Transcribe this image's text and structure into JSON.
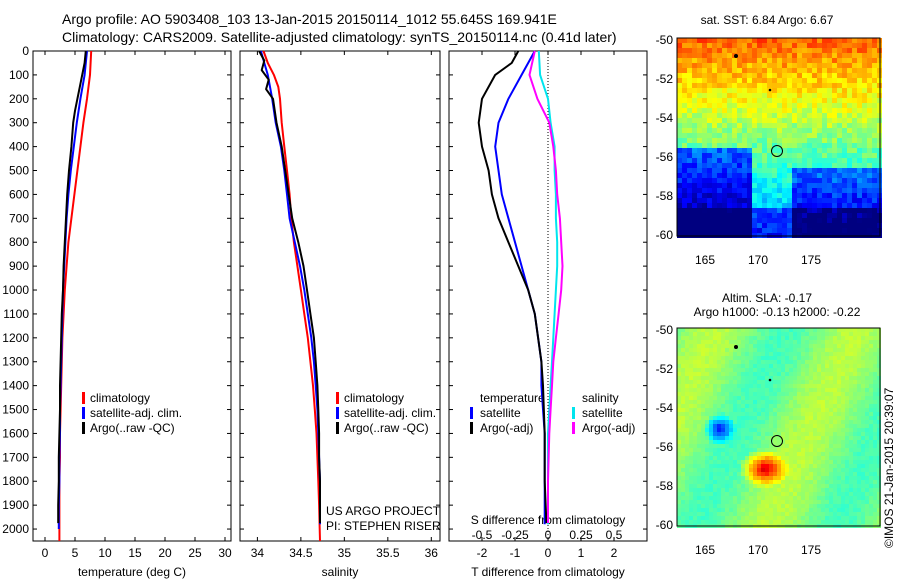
{
  "header": {
    "line1": "Argo profile: AO 5903408_103 13-Jan-2015 20150114_1012 55.645S 169.941E",
    "line2": "Climatology: CARS2009. Satellite-adjusted climatology: synTS_20150114.nc (0.41d later)"
  },
  "colors": {
    "climatology": "#ff0000",
    "satellite": "#0000ff",
    "argo": "#000000",
    "sal_satellite": "#00e5ee",
    "sal_argo": "#ff00ff"
  },
  "chart_data": [
    {
      "type": "line",
      "panel": "temperature",
      "xlabel": "temperature (deg C)",
      "xlim": [
        -2,
        31
      ],
      "xticks": [
        0,
        5,
        10,
        15,
        20,
        25,
        30
      ],
      "ylim": [
        2050,
        0
      ],
      "yticks": [
        0,
        100,
        200,
        300,
        400,
        500,
        600,
        700,
        800,
        900,
        1000,
        1100,
        1200,
        1300,
        1400,
        1500,
        1600,
        1700,
        1800,
        1900,
        2000
      ],
      "legend": [
        "climatology",
        "satellite-adj. clim.",
        "Argo(..raw -QC)"
      ],
      "series": [
        {
          "name": "climatology",
          "color": "climatology",
          "points": [
            [
              7.7,
              0
            ],
            [
              7.5,
              100
            ],
            [
              7.0,
              200
            ],
            [
              6.4,
              300
            ],
            [
              5.9,
              400
            ],
            [
              5.4,
              500
            ],
            [
              4.9,
              600
            ],
            [
              4.4,
              700
            ],
            [
              3.9,
              800
            ],
            [
              3.6,
              900
            ],
            [
              3.3,
              1000
            ],
            [
              3.1,
              1100
            ],
            [
              2.9,
              1200
            ],
            [
              2.8,
              1300
            ],
            [
              2.7,
              1400
            ],
            [
              2.6,
              1500
            ],
            [
              2.5,
              1600
            ],
            [
              2.5,
              1700
            ],
            [
              2.4,
              1800
            ],
            [
              2.4,
              1900
            ],
            [
              2.4,
              2050
            ]
          ]
        },
        {
          "name": "satellite-adj. clim.",
          "color": "satellite",
          "points": [
            [
              7.0,
              0
            ],
            [
              6.6,
              100
            ],
            [
              5.9,
              200
            ],
            [
              5.3,
              300
            ],
            [
              4.8,
              400
            ],
            [
              4.3,
              500
            ],
            [
              3.9,
              600
            ],
            [
              3.6,
              700
            ],
            [
              3.4,
              800
            ],
            [
              3.2,
              900
            ],
            [
              3.0,
              1000
            ],
            [
              2.9,
              1100
            ],
            [
              2.8,
              1200
            ],
            [
              2.7,
              1300
            ],
            [
              2.6,
              1400
            ],
            [
              2.5,
              1500
            ],
            [
              2.5,
              1600
            ],
            [
              2.4,
              1700
            ],
            [
              2.4,
              1800
            ],
            [
              2.3,
              1900
            ],
            [
              2.3,
              2000
            ]
          ]
        },
        {
          "name": "Argo(..raw -QC)",
          "color": "argo",
          "points": [
            [
              6.8,
              0
            ],
            [
              6.6,
              50
            ],
            [
              6.2,
              100
            ],
            [
              5.8,
              150
            ],
            [
              5.4,
              200
            ],
            [
              5.0,
              250
            ],
            [
              4.7,
              300
            ],
            [
              4.4,
              400
            ],
            [
              4.0,
              500
            ],
            [
              3.7,
              600
            ],
            [
              3.5,
              700
            ],
            [
              3.3,
              800
            ],
            [
              3.1,
              900
            ],
            [
              3.0,
              1000
            ],
            [
              2.8,
              1100
            ],
            [
              2.7,
              1200
            ],
            [
              2.6,
              1300
            ],
            [
              2.5,
              1400
            ],
            [
              2.5,
              1500
            ],
            [
              2.4,
              1600
            ],
            [
              2.3,
              1700
            ],
            [
              2.3,
              1800
            ],
            [
              2.2,
              1900
            ],
            [
              2.2,
              1975
            ]
          ]
        }
      ]
    },
    {
      "type": "line",
      "panel": "salinity",
      "xlabel": "salinity",
      "xlim": [
        33.8,
        36.1
      ],
      "xticks": [
        34,
        34.5,
        35,
        35.5,
        36
      ],
      "xticklabels": [
        "34",
        "34.5",
        "35",
        "35.5",
        "36"
      ],
      "legend": [
        "climatology",
        "satellite-adj. clim.",
        "Argo(..raw -QC)"
      ],
      "annotation": [
        "US ARGO PROJECT",
        "PI: STEPHEN RISER"
      ],
      "series": [
        {
          "name": "climatology",
          "color": "climatology",
          "points": [
            [
              34.07,
              0
            ],
            [
              34.12,
              50
            ],
            [
              34.19,
              100
            ],
            [
              34.24,
              150
            ],
            [
              34.26,
              200
            ],
            [
              34.28,
              300
            ],
            [
              34.31,
              400
            ],
            [
              34.34,
              500
            ],
            [
              34.37,
              600
            ],
            [
              34.39,
              700
            ],
            [
              34.42,
              800
            ],
            [
              34.46,
              900
            ],
            [
              34.5,
              1000
            ],
            [
              34.54,
              1100
            ],
            [
              34.58,
              1200
            ],
            [
              34.61,
              1300
            ],
            [
              34.64,
              1400
            ],
            [
              34.66,
              1500
            ],
            [
              34.68,
              1600
            ],
            [
              34.69,
              1700
            ],
            [
              34.7,
              1800
            ],
            [
              34.71,
              1900
            ],
            [
              34.72,
              2050
            ]
          ]
        },
        {
          "name": "satellite-adj. clim.",
          "color": "satellite",
          "points": [
            [
              34.04,
              0
            ],
            [
              34.08,
              50
            ],
            [
              34.12,
              100
            ],
            [
              34.17,
              200
            ],
            [
              34.21,
              300
            ],
            [
              34.27,
              400
            ],
            [
              34.31,
              500
            ],
            [
              34.34,
              600
            ],
            [
              34.37,
              700
            ],
            [
              34.43,
              800
            ],
            [
              34.49,
              900
            ],
            [
              34.54,
              1000
            ],
            [
              34.58,
              1100
            ],
            [
              34.62,
              1200
            ],
            [
              34.65,
              1300
            ],
            [
              34.67,
              1400
            ],
            [
              34.69,
              1500
            ],
            [
              34.7,
              1600
            ],
            [
              34.71,
              1700
            ],
            [
              34.72,
              1800
            ],
            [
              34.72,
              1900
            ],
            [
              34.72,
              1980
            ]
          ]
        },
        {
          "name": "Argo(..raw -QC)",
          "color": "argo",
          "points": [
            [
              34.02,
              0
            ],
            [
              34.08,
              40
            ],
            [
              34.05,
              80
            ],
            [
              34.13,
              120
            ],
            [
              34.1,
              160
            ],
            [
              34.18,
              200
            ],
            [
              34.22,
              300
            ],
            [
              34.28,
              400
            ],
            [
              34.32,
              500
            ],
            [
              34.36,
              600
            ],
            [
              34.4,
              700
            ],
            [
              34.47,
              800
            ],
            [
              34.53,
              900
            ],
            [
              34.57,
              1000
            ],
            [
              34.61,
              1100
            ],
            [
              34.65,
              1200
            ],
            [
              34.67,
              1300
            ],
            [
              34.69,
              1400
            ],
            [
              34.7,
              1500
            ],
            [
              34.71,
              1600
            ],
            [
              34.71,
              1700
            ],
            [
              34.72,
              1800
            ],
            [
              34.72,
              1900
            ],
            [
              34.72,
              1975
            ]
          ]
        }
      ]
    },
    {
      "type": "line",
      "panel": "difference",
      "xlabel": "T difference from climatology",
      "xlabel_top": "S difference from climatology",
      "xlim": [
        -3,
        3
      ],
      "xticks": [
        -2,
        -1,
        0,
        1,
        2
      ],
      "xticks_s": [
        -0.5,
        -0.25,
        0,
        0.25,
        0.5
      ],
      "xticklabels_s": [
        "-0.5",
        "-0.25",
        "0",
        "0.25",
        "0.5"
      ],
      "legend_temperature": [
        "temperature",
        "satellite",
        "Argo(-adj)"
      ],
      "legend_salinity": [
        "salinity",
        "satellite",
        "Argo(-adj)"
      ],
      "series": [
        {
          "name": "temperature satellite",
          "color": "satellite",
          "points": [
            [
              -0.4,
              0
            ],
            [
              -0.8,
              100
            ],
            [
              -1.2,
              200
            ],
            [
              -1.5,
              300
            ],
            [
              -1.6,
              400
            ],
            [
              -1.5,
              500
            ],
            [
              -1.4,
              600
            ],
            [
              -1.2,
              700
            ],
            [
              -1.0,
              800
            ],
            [
              -0.8,
              900
            ],
            [
              -0.6,
              1000
            ],
            [
              -0.4,
              1100
            ],
            [
              -0.3,
              1200
            ],
            [
              -0.2,
              1300
            ],
            [
              -0.2,
              1400
            ],
            [
              -0.15,
              1500
            ],
            [
              -0.1,
              1600
            ],
            [
              -0.1,
              1800
            ],
            [
              -0.1,
              1980
            ]
          ]
        },
        {
          "name": "temperature Argo(-adj)",
          "color": "argo",
          "points": [
            [
              -0.9,
              0
            ],
            [
              -1.1,
              50
            ],
            [
              -1.6,
              100
            ],
            [
              -2.0,
              200
            ],
            [
              -2.1,
              300
            ],
            [
              -2.0,
              400
            ],
            [
              -1.8,
              500
            ],
            [
              -1.7,
              600
            ],
            [
              -1.5,
              700
            ],
            [
              -1.2,
              800
            ],
            [
              -0.9,
              900
            ],
            [
              -0.6,
              1000
            ],
            [
              -0.4,
              1100
            ],
            [
              -0.3,
              1200
            ],
            [
              -0.2,
              1300
            ],
            [
              -0.15,
              1400
            ],
            [
              -0.1,
              1600
            ],
            [
              -0.1,
              1800
            ],
            [
              -0.05,
              1975
            ]
          ]
        },
        {
          "name": "salinity satellite",
          "color": "sal_satellite",
          "points": [
            [
              -0.07,
              0
            ],
            [
              -0.06,
              100
            ],
            [
              0.0,
              200
            ],
            [
              0.02,
              300
            ],
            [
              0.05,
              400
            ],
            [
              0.05,
              500
            ],
            [
              0.06,
              600
            ],
            [
              0.06,
              700
            ],
            [
              0.07,
              800
            ],
            [
              0.07,
              900
            ],
            [
              0.06,
              1000
            ],
            [
              0.05,
              1100
            ],
            [
              0.04,
              1200
            ],
            [
              0.03,
              1300
            ],
            [
              0.02,
              1400
            ],
            [
              0.01,
              1500
            ],
            [
              0.0,
              1600
            ],
            [
              0.0,
              1800
            ],
            [
              0.0,
              1980
            ]
          ]
        },
        {
          "name": "salinity Argo(-adj)",
          "color": "sal_argo",
          "points": [
            [
              -0.1,
              0
            ],
            [
              -0.14,
              100
            ],
            [
              -0.08,
              200
            ],
            [
              0.01,
              300
            ],
            [
              0.04,
              400
            ],
            [
              0.06,
              500
            ],
            [
              0.07,
              600
            ],
            [
              0.09,
              700
            ],
            [
              0.1,
              800
            ],
            [
              0.11,
              900
            ],
            [
              0.1,
              1000
            ],
            [
              0.08,
              1100
            ],
            [
              0.06,
              1200
            ],
            [
              0.04,
              1300
            ],
            [
              0.03,
              1400
            ],
            [
              0.02,
              1500
            ],
            [
              0.01,
              1600
            ],
            [
              0.0,
              1800
            ],
            [
              0.0,
              1975
            ]
          ]
        }
      ]
    }
  ],
  "maps": {
    "sst": {
      "title": "sat. SST: 6.84  Argo: 6.67",
      "xticks": [
        "165",
        "170",
        "175"
      ],
      "yticks": [
        "-50",
        "-52",
        "-54",
        "-56",
        "-58",
        "-60"
      ]
    },
    "sla": {
      "title1": "Altim. SLA: -0.17",
      "title2": "Argo h1000: -0.13 h2000: -0.22",
      "xticks": [
        "165",
        "170",
        "175"
      ],
      "yticks": [
        "-50",
        "-52",
        "-54",
        "-56",
        "-58",
        "-60"
      ]
    },
    "footer_vertical": "©IMOS 21-Jan-2015 20:39:07"
  }
}
